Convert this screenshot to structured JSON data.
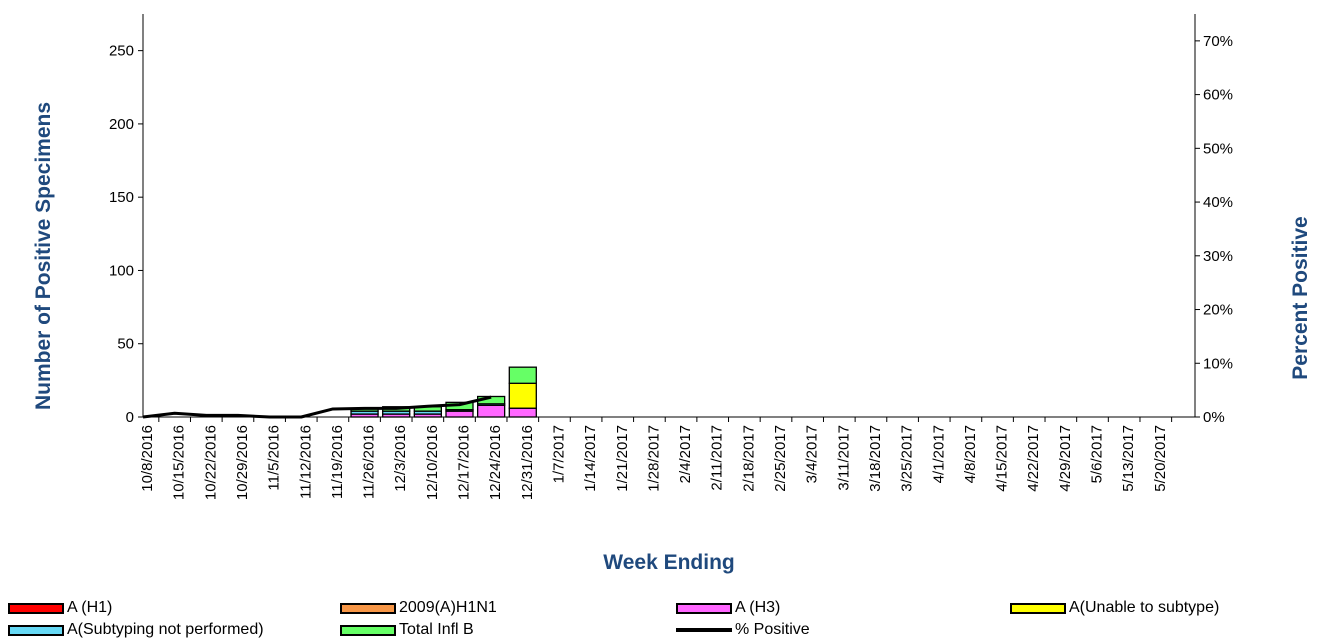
{
  "chart_data": {
    "type": "bar",
    "stacked": true,
    "xlabel": "Week Ending",
    "ylabel": "Number of  Positive Specimens",
    "y2label": "Percent Positive",
    "ylim": [
      0,
      275
    ],
    "yticks": [
      0,
      50,
      100,
      150,
      200,
      250
    ],
    "y2lim": [
      0,
      0.75
    ],
    "y2ticks": [
      "0%",
      "10%",
      "20%",
      "30%",
      "40%",
      "50%",
      "60%",
      "70%"
    ],
    "grid": false,
    "legend_position": "bottom",
    "weeks": [
      "10/8/2016",
      "10/15/2016",
      "10/22/2016",
      "10/29/2016",
      "11/5/2016",
      "11/12/2016",
      "11/19/2016",
      "11/26/2016",
      "12/3/2016",
      "12/10/2016",
      "12/17/2016",
      "12/24/2016",
      "12/31/2016",
      "1/7/2017",
      "1/14/2017",
      "1/21/2017",
      "1/28/2017",
      "2/4/2017",
      "2/11/2017",
      "2/18/2017",
      "2/25/2017",
      "3/4/2017",
      "3/11/2017",
      "3/18/2017",
      "3/25/2017",
      "4/1/2017",
      "4/8/2017",
      "4/15/2017",
      "4/22/2017",
      "4/29/2017",
      "5/6/2017",
      "5/13/2017",
      "5/20/2017"
    ],
    "series": [
      {
        "name": "A (H1)",
        "color": "#FF0000",
        "values": [
          0,
          0,
          0,
          0,
          0,
          0,
          0,
          0,
          0,
          0,
          0,
          0,
          0,
          0,
          0,
          0,
          0,
          0,
          0,
          0,
          0,
          0,
          0,
          0,
          0,
          0,
          0,
          0,
          0,
          0,
          0,
          0,
          0
        ]
      },
      {
        "name": "2009(A)H1N1",
        "color": "#F79646",
        "values": [
          0,
          0,
          0,
          0,
          0,
          0,
          0,
          0,
          0,
          0,
          0,
          0,
          0,
          0,
          0,
          0,
          0,
          0,
          0,
          0,
          0,
          0,
          0,
          0,
          0,
          0,
          0,
          0,
          0,
          0,
          0,
          0,
          0
        ]
      },
      {
        "name": "A (H3)",
        "color": "#FF66FF",
        "values": [
          0,
          0,
          0,
          0,
          0,
          0,
          2,
          2,
          2,
          4,
          8,
          6,
          0,
          0,
          0,
          0,
          0,
          0,
          0,
          0,
          0,
          0,
          0,
          0,
          0,
          0,
          0,
          0,
          0,
          0,
          0,
          0,
          0
        ]
      },
      {
        "name": "A(Unable to subtype)",
        "color": "#FFFF00",
        "values": [
          0,
          0,
          0,
          0,
          0,
          0,
          0,
          0,
          0,
          0,
          0,
          17,
          0,
          0,
          0,
          0,
          0,
          0,
          0,
          0,
          0,
          0,
          0,
          0,
          0,
          0,
          0,
          0,
          0,
          0,
          0,
          0,
          0
        ]
      },
      {
        "name": "A(Subtyping not performed)",
        "color": "#66D9F5",
        "values": [
          0,
          0,
          0,
          0,
          0,
          0,
          2,
          2,
          2,
          1,
          1,
          0,
          0,
          0,
          0,
          0,
          0,
          0,
          0,
          0,
          0,
          0,
          0,
          0,
          0,
          0,
          0,
          0,
          0,
          0,
          0,
          0,
          0
        ]
      },
      {
        "name": "Total Infl B",
        "color": "#66FF66",
        "values": [
          0,
          0,
          0,
          0,
          0,
          0,
          2,
          3,
          3,
          5,
          5,
          11,
          0,
          0,
          0,
          0,
          0,
          0,
          0,
          0,
          0,
          0,
          0,
          0,
          0,
          0,
          0,
          0,
          0,
          0,
          0,
          0,
          0
        ]
      }
    ],
    "percent_positive": {
      "name": "% Positive",
      "color": "#000000",
      "values": [
        0.0,
        0.007,
        0.003,
        0.003,
        0.0,
        0.0,
        0.015,
        0.016,
        0.016,
        0.02,
        0.023,
        0.037
      ]
    }
  }
}
